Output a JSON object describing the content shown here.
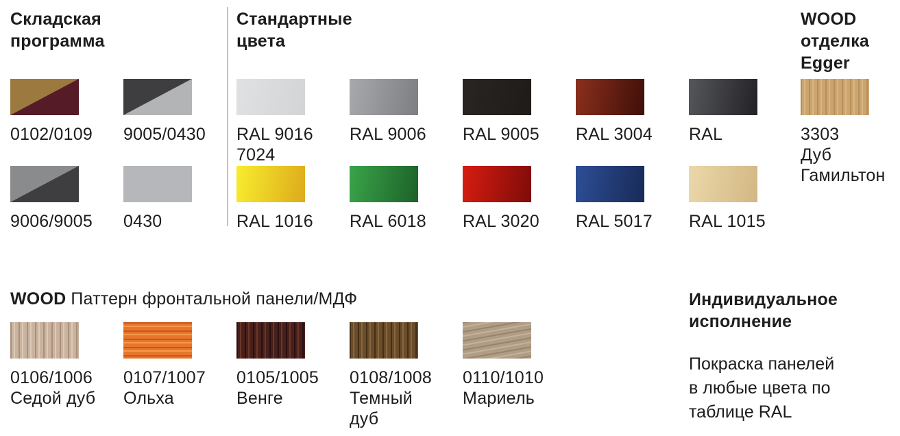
{
  "sections": {
    "stock": {
      "title": "Складская программа",
      "items": [
        {
          "code": "0102/0109",
          "swatch": {
            "type": "diagonal",
            "colors": [
              "#9c7a3f",
              "#551b27"
            ]
          }
        },
        {
          "code": "9005/0430",
          "swatch": {
            "type": "diagonal",
            "colors": [
              "#3e3e40",
              "#b2b4b6"
            ]
          }
        },
        {
          "code": "9006/9005",
          "swatch": {
            "type": "diagonal",
            "colors": [
              "#8a8b8d",
              "#3e3e40"
            ]
          }
        },
        {
          "code": "0430",
          "swatch": {
            "type": "solid",
            "colors": [
              "#b5b7ba"
            ]
          }
        }
      ]
    },
    "standard": {
      "title": "Стандартные цвета",
      "items": [
        {
          "code": "RAL 9016",
          "code2": "7024",
          "swatch": {
            "type": "gradient",
            "colors": [
              "#dfe1e3",
              "#d2d4d6"
            ]
          }
        },
        {
          "code": "RAL 9006",
          "swatch": {
            "type": "gradient",
            "colors": [
              "#a7a9ac",
              "#7c7e82"
            ]
          }
        },
        {
          "code": "RAL 9005",
          "swatch": {
            "type": "gradient",
            "colors": [
              "#292522",
              "#1f1b19"
            ]
          }
        },
        {
          "code": "RAL 3004",
          "swatch": {
            "type": "gradient",
            "colors": [
              "#8b2f1d",
              "#3f0f08"
            ]
          }
        },
        {
          "code": "RAL",
          "swatch": {
            "type": "gradient",
            "colors": [
              "#56575b",
              "#222226"
            ]
          }
        },
        {
          "code": "RAL 1016",
          "swatch": {
            "type": "gradient",
            "colors": [
              "#f8ed2f",
              "#ddaa1b"
            ]
          }
        },
        {
          "code": "RAL 6018",
          "swatch": {
            "type": "gradient",
            "colors": [
              "#3aa449",
              "#1c6129"
            ]
          }
        },
        {
          "code": "RAL 3020",
          "swatch": {
            "type": "gradient",
            "colors": [
              "#d71d10",
              "#7e0b09"
            ]
          }
        },
        {
          "code": "RAL 5017",
          "swatch": {
            "type": "gradient",
            "colors": [
              "#2e4e96",
              "#182a57"
            ]
          }
        },
        {
          "code": "RAL 1015",
          "swatch": {
            "type": "gradient",
            "colors": [
              "#ebd8aa",
              "#d2b783"
            ]
          }
        }
      ]
    },
    "egger": {
      "title": "WOOD отделка Egger",
      "items": [
        {
          "code": "3303",
          "name": "Дуб Гамильтон",
          "swatch": {
            "type": "wood-v",
            "colors": [
              "#cba470",
              "#b88f58",
              "#d8b684"
            ]
          }
        }
      ]
    },
    "wood_pattern": {
      "title_bold": "WOOD",
      "title_rest": "Паттерн фронтальной панели/МДФ",
      "items": [
        {
          "code": "0106/1006",
          "name": "Седой дуб",
          "swatch": {
            "type": "wood-v",
            "colors": [
              "#c9b29e",
              "#aa8f7a",
              "#dbcaba"
            ]
          }
        },
        {
          "code": "0107/1007",
          "name": "Ольха",
          "swatch": {
            "type": "wood-h",
            "colors": [
              "#e7762c",
              "#c9561b",
              "#f6984d"
            ]
          }
        },
        {
          "code": "0105/1005",
          "name": "Венге",
          "swatch": {
            "type": "wood-v",
            "colors": [
              "#47201c",
              "#2a0f10",
              "#6d3526"
            ]
          }
        },
        {
          "code": "0108/1008",
          "name": "Темный дуб",
          "swatch": {
            "type": "wood-v",
            "colors": [
              "#6a4c2a",
              "#452f18",
              "#876740"
            ]
          }
        },
        {
          "code": "0110/1010",
          "name": "Мариель",
          "swatch": {
            "type": "wood-d",
            "colors": [
              "#b09d85",
              "#97846c",
              "#c3b29d"
            ]
          }
        }
      ]
    },
    "custom": {
      "title": "Индивидуальное исполнение",
      "body": "Покраска панелей в любые цвета по таблице RAL"
    }
  }
}
